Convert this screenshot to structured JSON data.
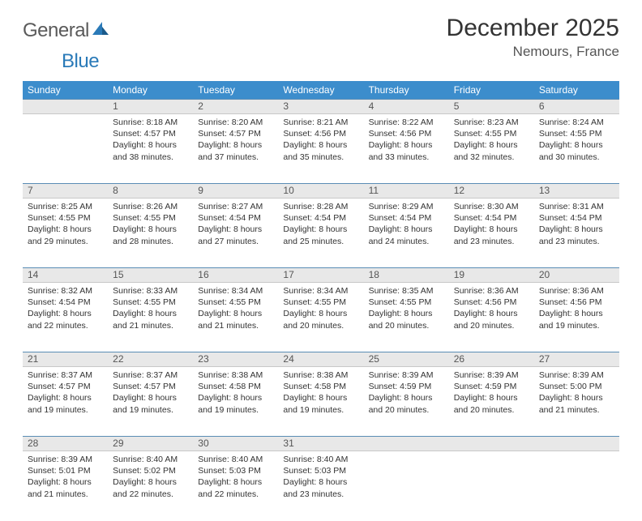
{
  "logo": {
    "part1": "General",
    "part2": "Blue"
  },
  "title": "December 2025",
  "location": "Nemours, France",
  "header_bg": "#3c8dcc",
  "daynum_bg": "#e8e8e8",
  "row_border": "#5a8db5",
  "weekdays": [
    "Sunday",
    "Monday",
    "Tuesday",
    "Wednesday",
    "Thursday",
    "Friday",
    "Saturday"
  ],
  "weeks": [
    [
      null,
      {
        "n": "1",
        "sr": "8:18 AM",
        "ss": "4:57 PM",
        "d": "8 hours and 38 minutes."
      },
      {
        "n": "2",
        "sr": "8:20 AM",
        "ss": "4:57 PM",
        "d": "8 hours and 37 minutes."
      },
      {
        "n": "3",
        "sr": "8:21 AM",
        "ss": "4:56 PM",
        "d": "8 hours and 35 minutes."
      },
      {
        "n": "4",
        "sr": "8:22 AM",
        "ss": "4:56 PM",
        "d": "8 hours and 33 minutes."
      },
      {
        "n": "5",
        "sr": "8:23 AM",
        "ss": "4:55 PM",
        "d": "8 hours and 32 minutes."
      },
      {
        "n": "6",
        "sr": "8:24 AM",
        "ss": "4:55 PM",
        "d": "8 hours and 30 minutes."
      }
    ],
    [
      {
        "n": "7",
        "sr": "8:25 AM",
        "ss": "4:55 PM",
        "d": "8 hours and 29 minutes."
      },
      {
        "n": "8",
        "sr": "8:26 AM",
        "ss": "4:55 PM",
        "d": "8 hours and 28 minutes."
      },
      {
        "n": "9",
        "sr": "8:27 AM",
        "ss": "4:54 PM",
        "d": "8 hours and 27 minutes."
      },
      {
        "n": "10",
        "sr": "8:28 AM",
        "ss": "4:54 PM",
        "d": "8 hours and 25 minutes."
      },
      {
        "n": "11",
        "sr": "8:29 AM",
        "ss": "4:54 PM",
        "d": "8 hours and 24 minutes."
      },
      {
        "n": "12",
        "sr": "8:30 AM",
        "ss": "4:54 PM",
        "d": "8 hours and 23 minutes."
      },
      {
        "n": "13",
        "sr": "8:31 AM",
        "ss": "4:54 PM",
        "d": "8 hours and 23 minutes."
      }
    ],
    [
      {
        "n": "14",
        "sr": "8:32 AM",
        "ss": "4:54 PM",
        "d": "8 hours and 22 minutes."
      },
      {
        "n": "15",
        "sr": "8:33 AM",
        "ss": "4:55 PM",
        "d": "8 hours and 21 minutes."
      },
      {
        "n": "16",
        "sr": "8:34 AM",
        "ss": "4:55 PM",
        "d": "8 hours and 21 minutes."
      },
      {
        "n": "17",
        "sr": "8:34 AM",
        "ss": "4:55 PM",
        "d": "8 hours and 20 minutes."
      },
      {
        "n": "18",
        "sr": "8:35 AM",
        "ss": "4:55 PM",
        "d": "8 hours and 20 minutes."
      },
      {
        "n": "19",
        "sr": "8:36 AM",
        "ss": "4:56 PM",
        "d": "8 hours and 20 minutes."
      },
      {
        "n": "20",
        "sr": "8:36 AM",
        "ss": "4:56 PM",
        "d": "8 hours and 19 minutes."
      }
    ],
    [
      {
        "n": "21",
        "sr": "8:37 AM",
        "ss": "4:57 PM",
        "d": "8 hours and 19 minutes."
      },
      {
        "n": "22",
        "sr": "8:37 AM",
        "ss": "4:57 PM",
        "d": "8 hours and 19 minutes."
      },
      {
        "n": "23",
        "sr": "8:38 AM",
        "ss": "4:58 PM",
        "d": "8 hours and 19 minutes."
      },
      {
        "n": "24",
        "sr": "8:38 AM",
        "ss": "4:58 PM",
        "d": "8 hours and 19 minutes."
      },
      {
        "n": "25",
        "sr": "8:39 AM",
        "ss": "4:59 PM",
        "d": "8 hours and 20 minutes."
      },
      {
        "n": "26",
        "sr": "8:39 AM",
        "ss": "4:59 PM",
        "d": "8 hours and 20 minutes."
      },
      {
        "n": "27",
        "sr": "8:39 AM",
        "ss": "5:00 PM",
        "d": "8 hours and 21 minutes."
      }
    ],
    [
      {
        "n": "28",
        "sr": "8:39 AM",
        "ss": "5:01 PM",
        "d": "8 hours and 21 minutes."
      },
      {
        "n": "29",
        "sr": "8:40 AM",
        "ss": "5:02 PM",
        "d": "8 hours and 22 minutes."
      },
      {
        "n": "30",
        "sr": "8:40 AM",
        "ss": "5:03 PM",
        "d": "8 hours and 22 minutes."
      },
      {
        "n": "31",
        "sr": "8:40 AM",
        "ss": "5:03 PM",
        "d": "8 hours and 23 minutes."
      },
      null,
      null,
      null
    ]
  ],
  "labels": {
    "sunrise": "Sunrise:",
    "sunset": "Sunset:",
    "daylight": "Daylight:"
  }
}
